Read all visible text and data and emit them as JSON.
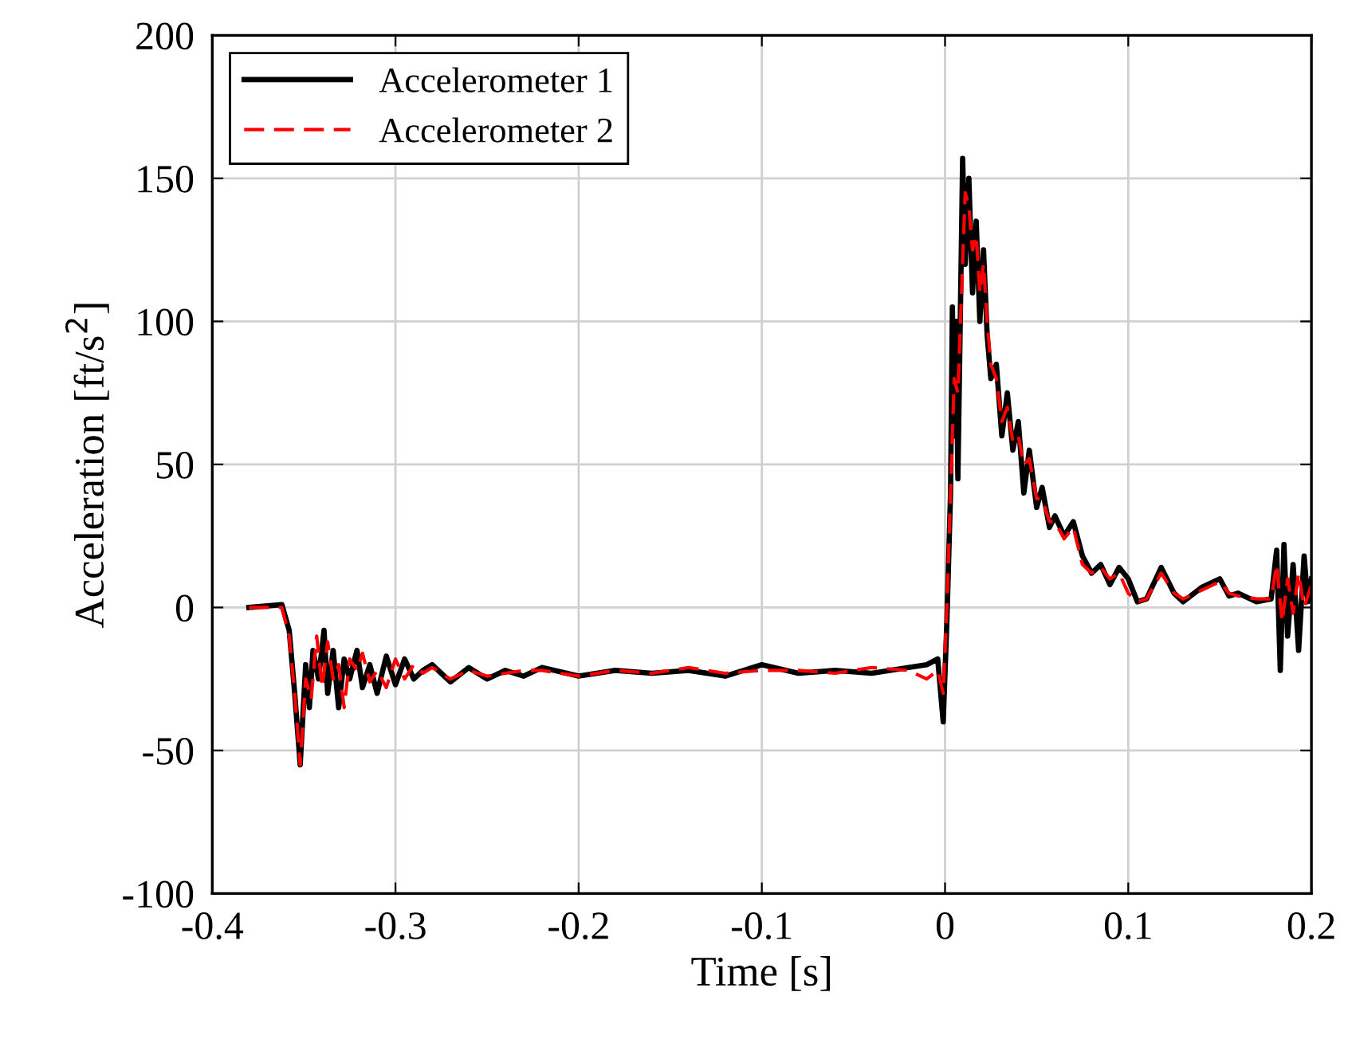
{
  "chart_data": {
    "type": "line",
    "xlabel": "Time [s]",
    "ylabel": "Acceleration [ft/s$^{2}$]",
    "xlim": [
      -0.4,
      0.2
    ],
    "ylim": [
      -100,
      200
    ],
    "xticks": [
      -0.4,
      -0.3,
      -0.2,
      -0.1,
      0,
      0.1,
      0.2
    ],
    "yticks": [
      -100,
      -50,
      0,
      50,
      100,
      150,
      200
    ],
    "grid": true,
    "legend": "top left",
    "marker": "none",
    "series": [
      {
        "name": "Accelerometer 1",
        "color": "#000000",
        "line_style": "solid",
        "x": [
          -0.38,
          -0.362,
          -0.358,
          -0.355,
          -0.352,
          -0.349,
          -0.347,
          -0.345,
          -0.342,
          -0.339,
          -0.337,
          -0.334,
          -0.331,
          -0.328,
          -0.325,
          -0.321,
          -0.318,
          -0.314,
          -0.31,
          -0.305,
          -0.3,
          -0.295,
          -0.29,
          -0.285,
          -0.28,
          -0.27,
          -0.26,
          -0.25,
          -0.24,
          -0.23,
          -0.22,
          -0.2,
          -0.18,
          -0.16,
          -0.14,
          -0.12,
          -0.1,
          -0.08,
          -0.06,
          -0.04,
          -0.02,
          -0.01,
          -0.004,
          -0.001,
          0.001,
          0.003,
          0.004,
          0.005,
          0.006,
          0.007,
          0.009,
          0.0096,
          0.011,
          0.013,
          0.015,
          0.017,
          0.019,
          0.021,
          0.023,
          0.025,
          0.028,
          0.031,
          0.034,
          0.037,
          0.04,
          0.043,
          0.046,
          0.05,
          0.053,
          0.057,
          0.06,
          0.065,
          0.07,
          0.075,
          0.08,
          0.085,
          0.09,
          0.095,
          0.1,
          0.105,
          0.11,
          0.118,
          0.125,
          0.13,
          0.14,
          0.15,
          0.155,
          0.16,
          0.17,
          0.178,
          0.181,
          0.183,
          0.185,
          0.187,
          0.19,
          0.193,
          0.196,
          0.198,
          0.2
        ],
        "values": [
          0,
          1,
          -8,
          -30,
          -55,
          -20,
          -35,
          -15,
          -25,
          -8,
          -30,
          -15,
          -35,
          -18,
          -25,
          -15,
          -28,
          -20,
          -30,
          -17,
          -27,
          -18,
          -25,
          -22,
          -20,
          -26,
          -21,
          -25,
          -22,
          -24,
          -21,
          -24,
          -22,
          -23,
          -22,
          -24,
          -20,
          -23,
          -22,
          -23,
          -21,
          -20,
          -18,
          -40,
          -5,
          40,
          105,
          60,
          100,
          45,
          130,
          157,
          120,
          150,
          110,
          135,
          100,
          125,
          95,
          80,
          85,
          60,
          75,
          55,
          65,
          40,
          55,
          35,
          42,
          28,
          32,
          25,
          30,
          18,
          12,
          15,
          8,
          14,
          10,
          2,
          3,
          14,
          5,
          2,
          7,
          10,
          4,
          5,
          2,
          3,
          20,
          -22,
          22,
          -10,
          15,
          -15,
          18,
          2,
          10
        ]
      },
      {
        "name": "Accelerometer 2",
        "color": "#ff0000",
        "line_style": "dashed",
        "x": [
          -0.38,
          -0.362,
          -0.358,
          -0.355,
          -0.352,
          -0.349,
          -0.346,
          -0.343,
          -0.34,
          -0.337,
          -0.334,
          -0.331,
          -0.328,
          -0.325,
          -0.321,
          -0.318,
          -0.314,
          -0.31,
          -0.305,
          -0.3,
          -0.295,
          -0.29,
          -0.285,
          -0.28,
          -0.27,
          -0.26,
          -0.25,
          -0.24,
          -0.23,
          -0.22,
          -0.2,
          -0.18,
          -0.16,
          -0.14,
          -0.12,
          -0.1,
          -0.08,
          -0.06,
          -0.04,
          -0.02,
          -0.01,
          -0.004,
          -0.001,
          0.001,
          0.003,
          0.005,
          0.007,
          0.009,
          0.011,
          0.013,
          0.015,
          0.017,
          0.019,
          0.021,
          0.023,
          0.025,
          0.028,
          0.031,
          0.034,
          0.037,
          0.04,
          0.043,
          0.046,
          0.05,
          0.053,
          0.057,
          0.06,
          0.065,
          0.07,
          0.075,
          0.08,
          0.085,
          0.09,
          0.095,
          0.1,
          0.105,
          0.11,
          0.118,
          0.125,
          0.13,
          0.14,
          0.15,
          0.155,
          0.16,
          0.17,
          0.178,
          0.181,
          0.184,
          0.187,
          0.19,
          0.193,
          0.196,
          0.2
        ],
        "values": [
          0,
          0,
          -10,
          -30,
          -55,
          -25,
          -32,
          -10,
          -28,
          -12,
          -25,
          -20,
          -35,
          -18,
          -22,
          -16,
          -26,
          -22,
          -28,
          -18,
          -25,
          -20,
          -23,
          -21,
          -25,
          -22,
          -24,
          -23,
          -22,
          -22,
          -24,
          -22,
          -23,
          -21,
          -23,
          -22,
          -22,
          -23,
          -21,
          -22,
          -25,
          -22,
          -30,
          0,
          40,
          80,
          75,
          110,
          145,
          140,
          125,
          130,
          110,
          120,
          100,
          85,
          80,
          65,
          70,
          58,
          60,
          50,
          52,
          38,
          38,
          30,
          30,
          24,
          28,
          15,
          12,
          14,
          10,
          12,
          5,
          2,
          3,
          12,
          5,
          3,
          6,
          9,
          5,
          4,
          3,
          3,
          15,
          -5,
          10,
          -2,
          12,
          0,
          8
        ]
      }
    ]
  }
}
